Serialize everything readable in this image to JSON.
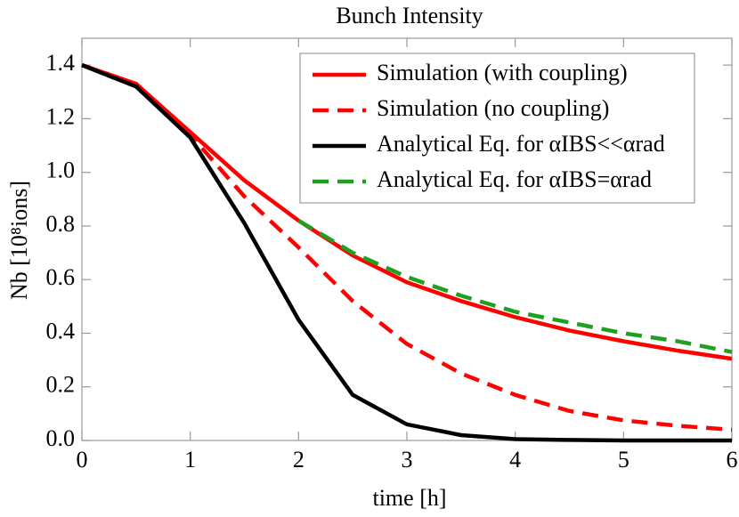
{
  "chart_data": {
    "type": "line",
    "title": "Bunch Intensity",
    "x_label": "time [h]",
    "y_label": "Nb [10⁸ions]",
    "x": [
      0,
      0.5,
      1,
      1.5,
      2,
      2.5,
      3,
      3.5,
      4,
      4.5,
      5,
      5.5,
      6
    ],
    "series": [
      {
        "name": "Simulation (with coupling)",
        "color": "#ff0000",
        "dashed": false,
        "values": [
          1.4,
          1.33,
          1.15,
          0.97,
          0.82,
          0.69,
          0.59,
          0.52,
          0.46,
          0.41,
          0.37,
          0.335,
          0.305
        ]
      },
      {
        "name": "Simulation (no coupling)",
        "color": "#ff0000",
        "dashed": true,
        "values": [
          1.4,
          1.33,
          1.14,
          0.91,
          0.72,
          0.52,
          0.36,
          0.25,
          0.17,
          0.11,
          0.075,
          0.055,
          0.04
        ]
      },
      {
        "name": "Analytical Eq. for αIBS<<αrad",
        "color": "#000000",
        "dashed": false,
        "values": [
          1.4,
          1.32,
          1.13,
          0.81,
          0.45,
          0.17,
          0.06,
          0.02,
          0.005,
          0.002,
          0,
          0,
          0
        ]
      },
      {
        "name": "Analytical Eq. for αIBS=αrad",
        "color": "#1fa01f",
        "dashed": true,
        "values": [
          null,
          null,
          null,
          null,
          0.82,
          0.7,
          0.61,
          0.54,
          0.48,
          0.44,
          0.4,
          0.37,
          0.33
        ]
      }
    ],
    "xlim": [
      0,
      6
    ],
    "xticks": [
      0,
      1,
      2,
      3,
      4,
      5,
      6
    ],
    "ylim": [
      0,
      1.5
    ],
    "yticks": [
      {
        "value": 0,
        "label": "0.0"
      },
      0.2,
      0.4,
      0.6,
      0.8,
      {
        "value": 1,
        "label": "1.0"
      },
      1.2,
      1.4
    ],
    "grid": false,
    "legend": "upper right"
  }
}
